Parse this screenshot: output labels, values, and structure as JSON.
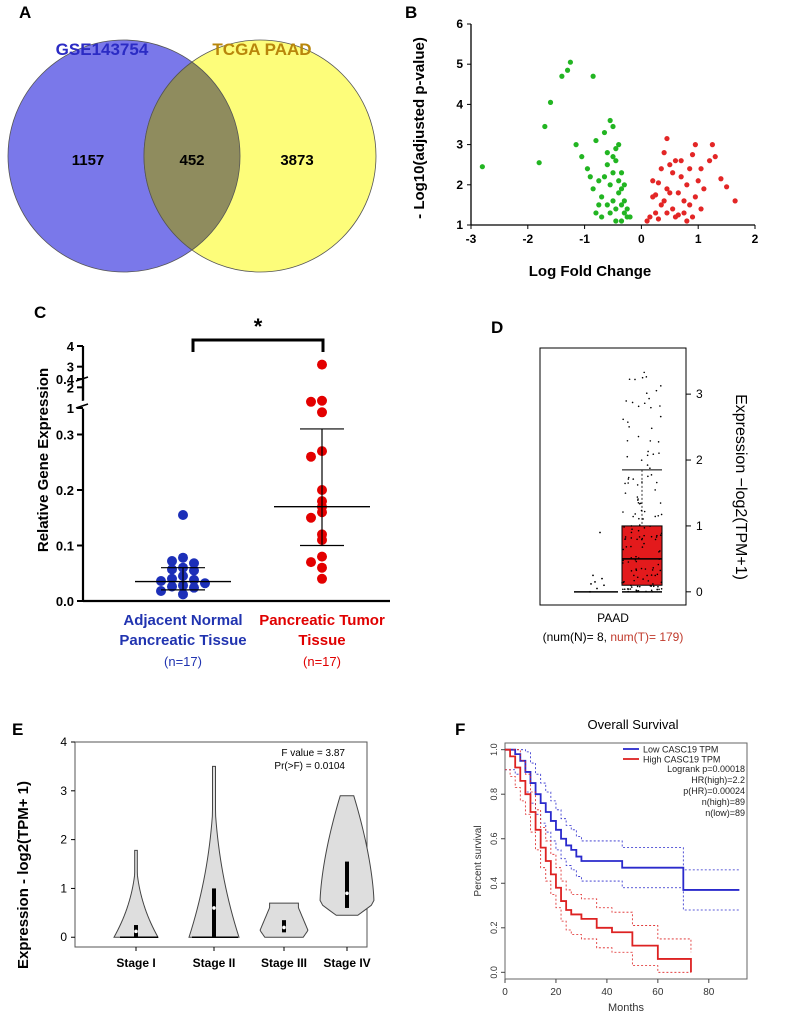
{
  "panels": {
    "A": {
      "letter": "A",
      "left_set": "GSE143754",
      "right_set": "TCGA PAAD",
      "colors": {
        "left": "#7a78ea",
        "right": "#fdfd7a",
        "overlap": "#8f8c5e",
        "left_label": "#2b2bc4",
        "right_label": "#b8860b"
      }
    },
    "B": {
      "letter": "B"
    },
    "C": {
      "letter": "C",
      "sig_label": "*"
    },
    "D": {
      "letter": "D",
      "group": "PAAD",
      "n_note_prefix": "(num(N)= 8,",
      "n_note_tumor": "num(T)= 179)"
    },
    "E": {
      "letter": "E",
      "f_value": "F value = 3.87",
      "pr_value": "Pr(>F) = 0.0104"
    },
    "F": {
      "letter": "F",
      "title": "Overall Survival"
    }
  },
  "chart_data": [
    {
      "id": "A",
      "type": "venn",
      "sets": [
        "GSE143754",
        "TCGA PAAD"
      ],
      "values": {
        "only_left": 1157,
        "overlap": 452,
        "only_right": 3873
      }
    },
    {
      "id": "B",
      "type": "scatter",
      "xlabel": "Log Fold Change",
      "ylabel": "- Log10(adjusted p-value)",
      "xlim": [
        -3,
        2
      ],
      "ylim": [
        1,
        6
      ],
      "xticks": [
        -3,
        -2,
        -1,
        0,
        1,
        2
      ],
      "yticks": [
        1,
        2,
        3,
        4,
        5,
        6
      ],
      "series": [
        {
          "color": "#22b522",
          "points": [
            [
              -2.8,
              2.45
            ],
            [
              -1.8,
              2.55
            ],
            [
              -1.7,
              3.45
            ],
            [
              -1.6,
              4.05
            ],
            [
              -1.4,
              4.7
            ],
            [
              -1.3,
              4.85
            ],
            [
              -1.25,
              5.05
            ],
            [
              -0.85,
              4.7
            ],
            [
              -1.15,
              3.0
            ],
            [
              -1.05,
              2.7
            ],
            [
              -0.95,
              2.4
            ],
            [
              -0.9,
              2.2
            ],
            [
              -0.85,
              1.9
            ],
            [
              -0.8,
              3.1
            ],
            [
              -0.75,
              2.1
            ],
            [
              -0.7,
              1.7
            ],
            [
              -0.65,
              3.3
            ],
            [
              -0.6,
              2.8
            ],
            [
              -0.55,
              3.6
            ],
            [
              -0.5,
              3.45
            ],
            [
              -0.5,
              2.3
            ],
            [
              -0.45,
              2.9
            ],
            [
              -0.4,
              2.1
            ],
            [
              -0.35,
              1.5
            ],
            [
              -0.3,
              1.3
            ],
            [
              -0.25,
              1.2
            ],
            [
              -0.6,
              2.5
            ],
            [
              -0.55,
              2.0
            ],
            [
              -0.5,
              1.6
            ],
            [
              -0.45,
              1.4
            ],
            [
              -0.4,
              1.8
            ],
            [
              -0.35,
              1.1
            ],
            [
              -0.3,
              1.6
            ],
            [
              -0.25,
              1.4
            ],
            [
              -0.2,
              1.2
            ],
            [
              -0.45,
              2.6
            ],
            [
              -0.65,
              2.2
            ],
            [
              -0.75,
              1.5
            ],
            [
              -0.35,
              2.3
            ],
            [
              -0.4,
              3.0
            ],
            [
              -0.3,
              2.0
            ],
            [
              -0.55,
              1.3
            ],
            [
              -0.7,
              1.2
            ],
            [
              -0.8,
              1.3
            ],
            [
              -0.6,
              1.5
            ],
            [
              -0.45,
              1.1
            ],
            [
              -0.35,
              1.9
            ],
            [
              -0.5,
              2.7
            ]
          ]
        },
        {
          "color": "#e32626",
          "points": [
            [
              1.65,
              1.6
            ],
            [
              1.5,
              1.95
            ],
            [
              1.4,
              2.15
            ],
            [
              1.3,
              2.7
            ],
            [
              1.25,
              3.0
            ],
            [
              1.2,
              2.6
            ],
            [
              1.05,
              2.4
            ],
            [
              0.95,
              3.0
            ],
            [
              0.9,
              2.75
            ],
            [
              0.85,
              2.4
            ],
            [
              0.8,
              2.0
            ],
            [
              0.75,
              1.6
            ],
            [
              0.7,
              2.2
            ],
            [
              0.65,
              1.8
            ],
            [
              0.6,
              2.6
            ],
            [
              0.55,
              2.3
            ],
            [
              0.5,
              2.5
            ],
            [
              0.45,
              3.15
            ],
            [
              0.45,
              1.9
            ],
            [
              0.4,
              2.8
            ],
            [
              0.35,
              1.5
            ],
            [
              0.3,
              2.05
            ],
            [
              0.25,
              1.3
            ],
            [
              0.2,
              1.7
            ],
            [
              0.15,
              1.2
            ],
            [
              0.1,
              1.1
            ],
            [
              0.55,
              1.4
            ],
            [
              0.65,
              1.25
            ],
            [
              0.75,
              1.3
            ],
            [
              0.85,
              1.5
            ],
            [
              0.95,
              1.7
            ],
            [
              1.05,
              1.4
            ],
            [
              0.35,
              2.4
            ],
            [
              0.5,
              1.8
            ],
            [
              0.6,
              1.2
            ],
            [
              0.4,
              1.6
            ],
            [
              0.3,
              1.15
            ],
            [
              0.7,
              2.6
            ],
            [
              0.8,
              1.1
            ],
            [
              1.1,
              1.9
            ],
            [
              0.2,
              2.1
            ],
            [
              0.45,
              1.3
            ],
            [
              0.9,
              1.2
            ],
            [
              0.25,
              1.75
            ],
            [
              1.0,
              2.1
            ]
          ]
        }
      ]
    },
    {
      "id": "C",
      "type": "scatter",
      "ylabel": "Relative Gene Expression",
      "lower_yticks": [
        "0.0",
        "0.1",
        "0.2",
        "0.3",
        "0.4"
      ],
      "upper_yticks": [
        "1",
        "2",
        "3",
        "4"
      ],
      "categories": [
        {
          "line1": "Adjacent Normal",
          "line2": "Pancreatic Tissue",
          "n": "(n=17)",
          "color": "#2134b0"
        },
        {
          "line1": "Pancreatic Tumor",
          "line2": "Tissue",
          "n": "(n=17)",
          "color": "#e00000"
        }
      ],
      "series": [
        {
          "name": "Adjacent Normal Pancreatic Tissue",
          "color": "#1c2fb8",
          "values": [
            0.155,
            0.078,
            0.072,
            0.068,
            0.06,
            0.057,
            0.055,
            0.045,
            0.04,
            0.038,
            0.036,
            0.032,
            0.028,
            0.026,
            0.024,
            0.018,
            0.012
          ],
          "summary": {
            "center": 0.035,
            "low": 0.02,
            "high": 0.06
          }
        },
        {
          "name": "Pancreatic Tumor Tissue",
          "color": "#e30000",
          "values": [
            3.1,
            1.35,
            1.3,
            0.34,
            0.27,
            0.26,
            0.2,
            0.18,
            0.17,
            0.16,
            0.15,
            0.12,
            0.11,
            0.08,
            0.07,
            0.06,
            0.04
          ],
          "summary": {
            "center": 0.17,
            "low": 0.1,
            "high": 0.31
          }
        }
      ]
    },
    {
      "id": "D",
      "type": "box",
      "ylabel": "Expression −log2(TPM+1)",
      "ylim": [
        -0.2,
        3.7
      ],
      "yticks": [
        0,
        1,
        2,
        3
      ],
      "normal": {
        "median": 0.0,
        "q1": 0.0,
        "q3": 0.0,
        "points": [
          0.0,
          0.05,
          0.1,
          0.15,
          0.2,
          0.25,
          0.9,
          0.12
        ],
        "color": "#000000"
      },
      "tumor": {
        "median": 0.5,
        "q1": 0.1,
        "q3": 1.0,
        "upper_whisker": 1.85,
        "color": "#e31a1c"
      }
    },
    {
      "id": "E",
      "type": "violin",
      "ylabel": "Expression - log2(TPM+ 1)",
      "ylim": [
        -0.2,
        4.0
      ],
      "yticks": [
        0,
        1,
        2,
        3,
        4
      ],
      "categories": [
        "Stage I",
        "Stage II",
        "Stage III",
        "Stage IV"
      ],
      "series": [
        {
          "name": "Stage I",
          "min": 0,
          "max": 1.78,
          "median": 0.12,
          "q1": 0.0,
          "q3": 0.25
        },
        {
          "name": "Stage II",
          "min": 0,
          "max": 3.5,
          "median": 0.6,
          "q1": 0.0,
          "q3": 1.0
        },
        {
          "name": "Stage III",
          "min": 0.0,
          "max": 0.7,
          "median": 0.2,
          "q1": 0.1,
          "q3": 0.35
        },
        {
          "name": "Stage IV",
          "min": 0.45,
          "max": 2.9,
          "median": 0.9,
          "q1": 0.6,
          "q3": 1.55
        }
      ]
    },
    {
      "id": "F",
      "type": "line",
      "title": "Overall Survival",
      "xlabel": "Months",
      "ylabel": "Percent survival",
      "xlim": [
        0,
        95
      ],
      "ylim": [
        -0.03,
        1.03
      ],
      "xticks": [
        0,
        20,
        40,
        60,
        80
      ],
      "yticks": [
        "0.0",
        "0.2",
        "0.4",
        "0.6",
        "0.8",
        "1.0"
      ],
      "legend_position": "top-right",
      "stats": [
        "Logrank p=0.00018",
        "HR(high)=2.2",
        "p(HR)=0.00024",
        "n(high)=89",
        "n(low)=89"
      ],
      "series": [
        {
          "name": "Low CASC19 TPM",
          "color": "#2a2acc",
          "x": [
            0,
            4,
            6,
            8,
            10,
            12,
            14,
            16,
            18,
            20,
            22,
            24,
            26,
            28,
            30,
            34,
            38,
            46,
            70,
            92
          ],
          "y": [
            1.0,
            0.98,
            0.95,
            0.9,
            0.85,
            0.8,
            0.76,
            0.72,
            0.68,
            0.64,
            0.6,
            0.57,
            0.55,
            0.52,
            0.5,
            0.5,
            0.5,
            0.47,
            0.37,
            0.37
          ]
        },
        {
          "name": "High CASC19 TPM",
          "color": "#dd2222",
          "x": [
            0,
            2,
            4,
            6,
            8,
            10,
            12,
            14,
            16,
            18,
            20,
            22,
            24,
            26,
            30,
            36,
            42,
            50,
            60,
            73
          ],
          "y": [
            1.0,
            0.97,
            0.92,
            0.86,
            0.8,
            0.72,
            0.64,
            0.56,
            0.5,
            0.44,
            0.38,
            0.32,
            0.28,
            0.26,
            0.24,
            0.2,
            0.18,
            0.12,
            0.06,
            0.0
          ]
        }
      ]
    }
  ]
}
